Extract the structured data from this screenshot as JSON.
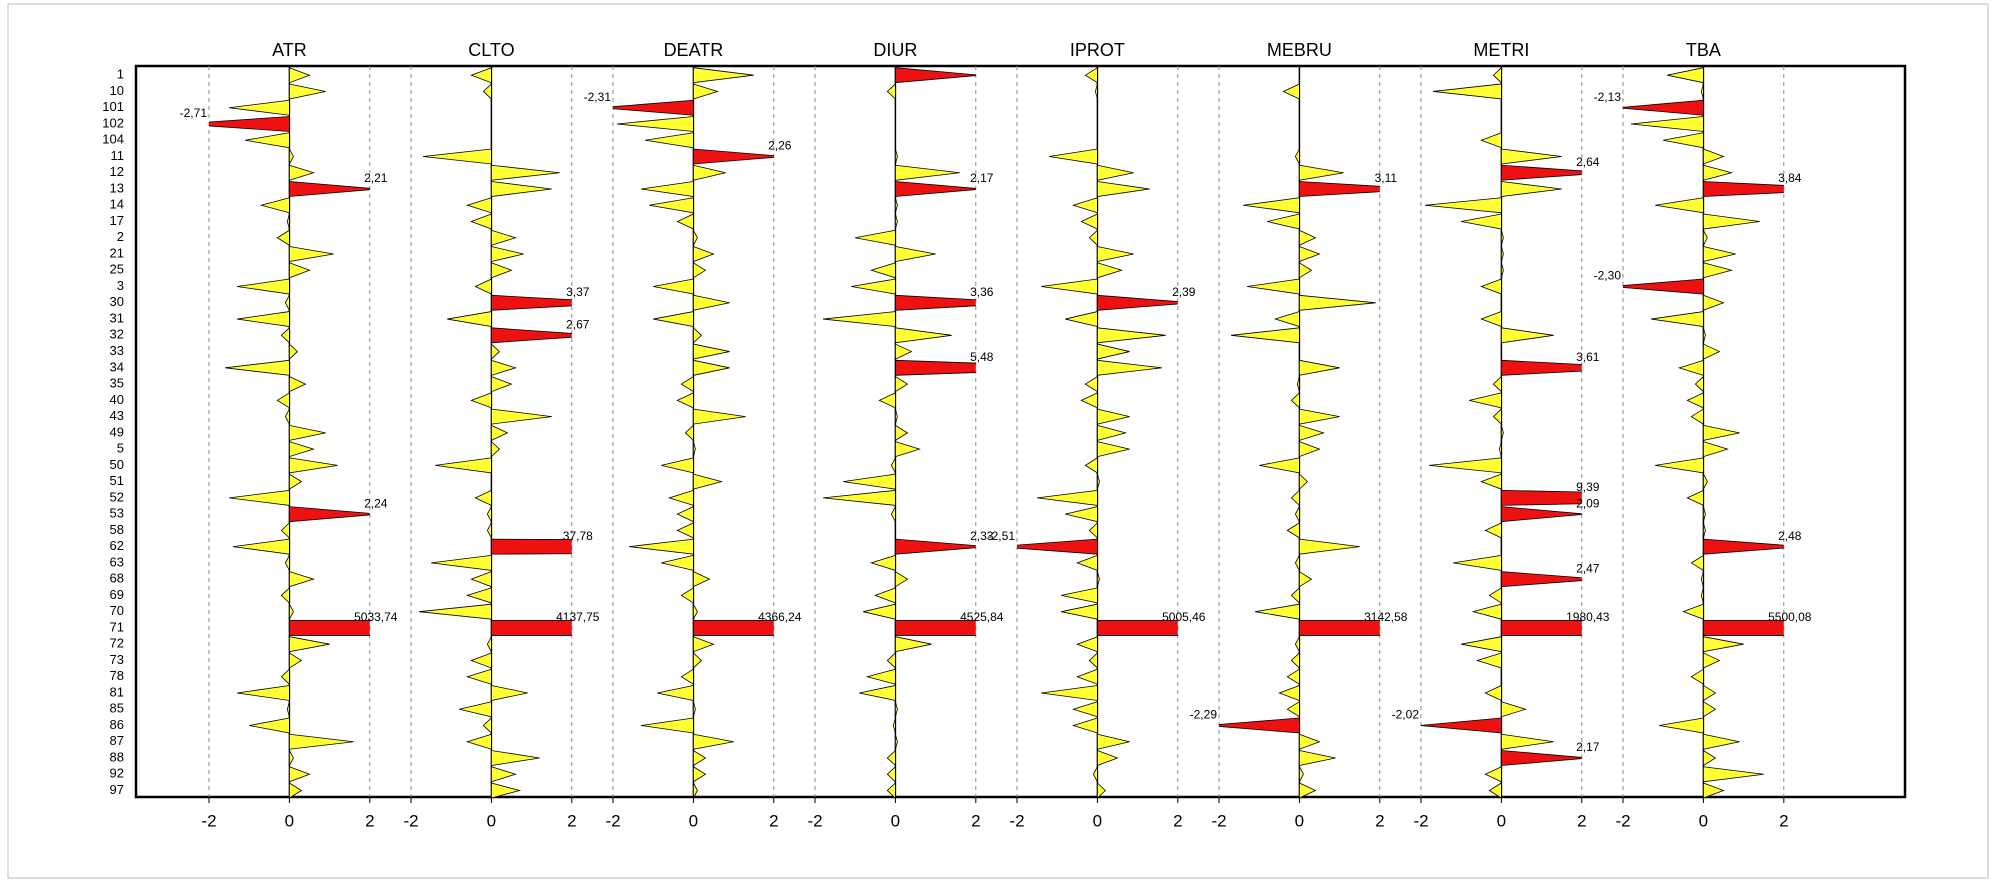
{
  "chart_data": {
    "type": "bar",
    "categories": [
      "1",
      "10",
      "101",
      "102",
      "104",
      "11",
      "12",
      "13",
      "14",
      "17",
      "2",
      "21",
      "25",
      "3",
      "30",
      "31",
      "32",
      "33",
      "34",
      "35",
      "40",
      "43",
      "49",
      "5",
      "50",
      "51",
      "52",
      "53",
      "58",
      "62",
      "63",
      "68",
      "69",
      "70",
      "71",
      "72",
      "73",
      "78",
      "81",
      "85",
      "86",
      "87",
      "88",
      "92",
      "97"
    ],
    "xlim": [
      -2.5,
      2.5
    ],
    "xticks": [
      -2,
      0,
      2
    ],
    "grid": true,
    "color": "#ffff33",
    "highlight_color": "#ee1111",
    "series": [
      {
        "name": "ATR",
        "values": [
          0.5,
          0.9,
          -1.5,
          -2.71,
          -1.1,
          0.1,
          0.6,
          2.21,
          -0.7,
          -0.05,
          -0.3,
          1.1,
          0.5,
          -1.3,
          -0.1,
          -1.3,
          -0.2,
          0.2,
          -1.6,
          0.4,
          -0.3,
          -0.1,
          0.9,
          0.6,
          1.2,
          0.3,
          -1.5,
          2.24,
          -0.2,
          -1.4,
          -0.1,
          0.6,
          -0.2,
          0.1,
          5033.74,
          1.0,
          0.3,
          -0.2,
          -1.3,
          -0.05,
          -1.0,
          1.6,
          0.1,
          0.5,
          0.3
        ],
        "value_labels": [
          null,
          null,
          null,
          "-2,71",
          null,
          null,
          null,
          "2,21",
          null,
          null,
          null,
          null,
          null,
          null,
          null,
          null,
          null,
          null,
          null,
          null,
          null,
          null,
          null,
          null,
          null,
          null,
          null,
          "2,24",
          null,
          null,
          null,
          null,
          null,
          null,
          "5033,74",
          null,
          null,
          null,
          null,
          null,
          null,
          null,
          null,
          null,
          null
        ]
      },
      {
        "name": "CLTO",
        "values": [
          -0.5,
          -0.2,
          0,
          0,
          0,
          -1.7,
          1.7,
          1.5,
          -0.6,
          -0.5,
          0.6,
          0.8,
          0.5,
          -0.4,
          3.37,
          -1.1,
          2.67,
          0.2,
          0.6,
          0.5,
          -0.5,
          1.5,
          0.4,
          0.2,
          -1.4,
          0,
          -0.4,
          -0.1,
          -0.1,
          37.78,
          -1.5,
          -0.5,
          -0.6,
          -1.8,
          4137.75,
          -0.1,
          -0.5,
          -0.6,
          0.9,
          -0.8,
          -0.2,
          -0.6,
          1.2,
          0.6,
          0.7
        ],
        "value_labels": [
          null,
          null,
          null,
          null,
          null,
          null,
          null,
          null,
          null,
          null,
          null,
          null,
          null,
          null,
          "3,37",
          null,
          "2,67",
          null,
          null,
          null,
          null,
          null,
          null,
          null,
          null,
          null,
          null,
          null,
          null,
          "37,78",
          null,
          null,
          null,
          null,
          "4137,75",
          null,
          null,
          null,
          null,
          null,
          null,
          null,
          null,
          null,
          null
        ]
      },
      {
        "name": "DEATR",
        "values": [
          1.5,
          0.6,
          -2.31,
          -1.9,
          -1.2,
          2.26,
          0.8,
          -1.3,
          -1.1,
          -0.4,
          0.1,
          0.5,
          0.3,
          -1.0,
          0.9,
          -1.0,
          0.2,
          0.9,
          0.9,
          -0.3,
          -0.4,
          1.3,
          -0.2,
          0.05,
          -0.8,
          0.7,
          -0.6,
          -0.4,
          -0.4,
          -1.6,
          -0.8,
          0.4,
          -0.3,
          0.1,
          4366.24,
          0.5,
          0.2,
          -0.3,
          -0.9,
          0.05,
          -1.3,
          1.0,
          0.3,
          0.3,
          0.1
        ],
        "value_labels": [
          null,
          null,
          "-2,31",
          null,
          null,
          "2,26",
          null,
          null,
          null,
          null,
          null,
          null,
          null,
          null,
          null,
          null,
          null,
          null,
          null,
          null,
          null,
          null,
          null,
          null,
          null,
          null,
          null,
          null,
          null,
          null,
          null,
          null,
          null,
          null,
          "4366,24",
          null,
          null,
          null,
          null,
          null,
          null,
          null,
          null,
          null,
          null
        ]
      },
      {
        "name": "DIUR",
        "values": [
          2.1,
          -0.2,
          0,
          0,
          0,
          0.05,
          1.6,
          2.17,
          0.05,
          0.05,
          -1.0,
          1.0,
          -0.6,
          -1.1,
          3.36,
          -1.8,
          1.4,
          0.4,
          5.48,
          0.3,
          -0.4,
          0.05,
          0.3,
          0.6,
          -0.1,
          -1.3,
          -1.8,
          -0.1,
          0,
          2.33,
          -0.6,
          0.3,
          -0.5,
          -0.8,
          4525.84,
          0.9,
          -0.2,
          -0.7,
          -0.9,
          0.05,
          -0.05,
          0.05,
          -0.2,
          -0.2,
          -0.2
        ],
        "value_labels": [
          null,
          null,
          null,
          null,
          null,
          null,
          null,
          "2,17",
          null,
          null,
          null,
          null,
          null,
          null,
          "3,36",
          null,
          null,
          null,
          "5,48",
          null,
          null,
          null,
          null,
          null,
          null,
          null,
          null,
          null,
          null,
          "2,33",
          null,
          null,
          null,
          null,
          "4525,84",
          null,
          null,
          null,
          null,
          null,
          null,
          null,
          null,
          null,
          null
        ]
      },
      {
        "name": "IPROT",
        "values": [
          -0.3,
          -0.05,
          0,
          0,
          0,
          -1.2,
          0.9,
          1.3,
          -0.6,
          -0.4,
          -0.2,
          0.9,
          0.6,
          -1.4,
          2.39,
          -0.8,
          1.7,
          0.8,
          1.6,
          -0.3,
          -0.4,
          0.8,
          0.7,
          0.8,
          -0.3,
          0.05,
          -1.5,
          -0.8,
          -0.2,
          -2.51,
          -0.5,
          0.05,
          -0.9,
          -0.9,
          5005.46,
          -0.5,
          -0.2,
          -0.5,
          -1.4,
          -0.6,
          -0.6,
          0.8,
          0.5,
          -0.1,
          0.2
        ],
        "value_labels": [
          null,
          null,
          null,
          null,
          null,
          null,
          null,
          null,
          null,
          null,
          null,
          null,
          null,
          null,
          "2,39",
          null,
          null,
          null,
          null,
          null,
          null,
          null,
          null,
          null,
          null,
          null,
          null,
          null,
          null,
          "-2,51",
          null,
          null,
          null,
          null,
          "5005,46",
          null,
          null,
          null,
          null,
          null,
          null,
          null,
          null,
          null,
          null
        ]
      },
      {
        "name": "MEBRU",
        "values": [
          0,
          -0.4,
          0,
          0,
          0,
          -0.1,
          1.1,
          3.11,
          -1.4,
          -0.8,
          0.4,
          0.5,
          0.3,
          -1.3,
          1.9,
          -0.6,
          -1.7,
          0,
          1.0,
          -0.05,
          -0.2,
          1.0,
          0.6,
          0.5,
          -1.0,
          0.2,
          -0.2,
          -0.1,
          -0.3,
          1.5,
          -0.1,
          0.3,
          -0.2,
          -1.1,
          3142.58,
          -0.1,
          -0.2,
          -0.3,
          -0.5,
          -0.3,
          -2.29,
          0.5,
          0.9,
          0.1,
          0.4
        ],
        "value_labels": [
          null,
          null,
          null,
          null,
          null,
          null,
          null,
          "3,11",
          null,
          null,
          null,
          null,
          null,
          null,
          null,
          null,
          null,
          null,
          null,
          null,
          null,
          null,
          null,
          null,
          null,
          null,
          null,
          null,
          null,
          null,
          null,
          null,
          null,
          null,
          "3142,58",
          null,
          null,
          null,
          null,
          null,
          "-2,29",
          null,
          null,
          null,
          null
        ]
      },
      {
        "name": "METRI",
        "values": [
          -0.2,
          -1.7,
          0,
          0,
          -0.5,
          1.5,
          2.64,
          1.5,
          -1.9,
          -1.0,
          0.05,
          0.05,
          0.05,
          -0.5,
          0,
          -0.5,
          1.3,
          0,
          3.61,
          -0.2,
          -0.8,
          -0.2,
          0.05,
          -0.05,
          -1.8,
          -0.5,
          9.39,
          2.09,
          -0.4,
          0,
          -1.2,
          2.47,
          -0.3,
          -0.7,
          1980.43,
          -1.0,
          -0.6,
          0,
          -0.4,
          0.6,
          -2.02,
          1.3,
          2.17,
          -0.4,
          -0.3
        ],
        "value_labels": [
          null,
          null,
          null,
          null,
          null,
          null,
          "2,64",
          null,
          null,
          null,
          null,
          null,
          null,
          null,
          null,
          null,
          null,
          null,
          "3,61",
          null,
          null,
          null,
          null,
          null,
          null,
          null,
          "9,39",
          "2,09",
          null,
          null,
          null,
          "2,47",
          null,
          null,
          "1980,43",
          null,
          null,
          null,
          null,
          null,
          "-2,02",
          null,
          "2,17",
          null,
          null
        ]
      },
      {
        "name": "TBA",
        "values": [
          -0.9,
          -0.05,
          -2.13,
          -1.8,
          -1.0,
          0.5,
          0.7,
          3.84,
          -1.2,
          1.4,
          0.1,
          0.8,
          0.7,
          -2.3,
          0.5,
          -1.3,
          0.05,
          0.4,
          -0.6,
          -0.2,
          -0.4,
          -0.3,
          0.9,
          0.6,
          -1.2,
          0.1,
          -0.4,
          0.05,
          0.05,
          2.48,
          -0.3,
          -0.05,
          -0.05,
          -0.5,
          5500.08,
          1.0,
          0.4,
          -0.3,
          0.3,
          0.3,
          -1.1,
          0.9,
          0.3,
          1.5,
          0.5
        ],
        "value_labels": [
          null,
          null,
          "-2,13",
          null,
          null,
          null,
          null,
          "3,84",
          null,
          null,
          null,
          null,
          null,
          "-2,30",
          null,
          null,
          null,
          null,
          null,
          null,
          null,
          null,
          null,
          null,
          null,
          null,
          null,
          null,
          null,
          "2,48",
          null,
          null,
          null,
          null,
          "5500,08",
          null,
          null,
          null,
          null,
          null,
          null,
          null,
          null,
          null,
          null
        ]
      }
    ]
  }
}
